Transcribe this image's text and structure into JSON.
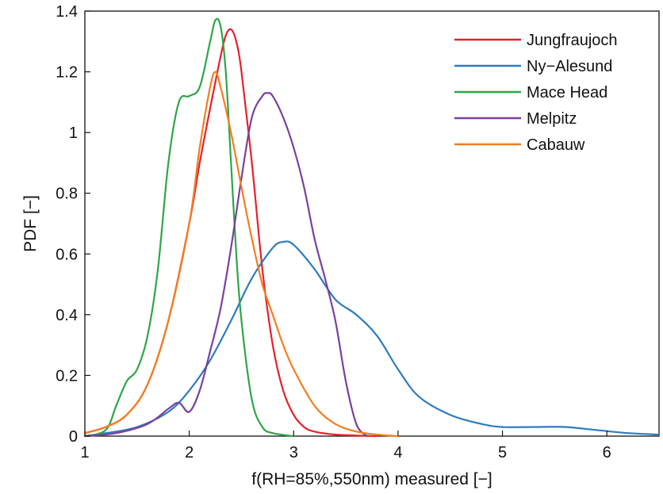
{
  "chart_data": {
    "type": "line",
    "title": "",
    "xlabel": "f(RH=85%,550nm) measured [−]",
    "ylabel": "PDF [−]",
    "xlim": [
      1,
      6.5
    ],
    "ylim": [
      0,
      1.4
    ],
    "xticks": [
      1,
      2,
      3,
      4,
      5,
      6
    ],
    "yticks": [
      0,
      0.2,
      0.4,
      0.6,
      0.8,
      1,
      1.2,
      1.4
    ],
    "xtick_labels": [
      "1",
      "2",
      "3",
      "4",
      "5",
      "6"
    ],
    "ytick_labels": [
      "0",
      "0.2",
      "0.4",
      "0.6",
      "0.8",
      "1",
      "1.2",
      "1.4"
    ],
    "grid": false,
    "legend_position": "top-right",
    "series": [
      {
        "name": "Jungfraujoch",
        "color": "#e8202a",
        "x": [
          1.0,
          1.2,
          1.4,
          1.6,
          1.8,
          2.0,
          2.1,
          2.2,
          2.3,
          2.35,
          2.4,
          2.45,
          2.5,
          2.6,
          2.7,
          2.8,
          2.9,
          3.0,
          3.1,
          3.2,
          3.4,
          3.6,
          3.8
        ],
        "y": [
          0.01,
          0.03,
          0.07,
          0.17,
          0.38,
          0.7,
          0.9,
          1.08,
          1.25,
          1.32,
          1.34,
          1.3,
          1.2,
          0.9,
          0.55,
          0.3,
          0.15,
          0.07,
          0.03,
          0.015,
          0.005,
          0.002,
          0.0
        ]
      },
      {
        "name": "Ny−Alesund",
        "color": "#2e7bbf",
        "x": [
          1.0,
          1.2,
          1.5,
          1.8,
          2.0,
          2.2,
          2.4,
          2.6,
          2.8,
          2.9,
          3.0,
          3.2,
          3.4,
          3.6,
          3.8,
          4.0,
          4.2,
          4.5,
          4.8,
          5.0,
          5.3,
          5.6,
          5.9,
          6.2,
          6.5
        ],
        "y": [
          0.0,
          0.01,
          0.03,
          0.08,
          0.15,
          0.25,
          0.38,
          0.52,
          0.62,
          0.64,
          0.63,
          0.55,
          0.45,
          0.4,
          0.33,
          0.22,
          0.13,
          0.07,
          0.04,
          0.03,
          0.03,
          0.03,
          0.02,
          0.01,
          0.005
        ]
      },
      {
        "name": "Mace Head",
        "color": "#2ea646",
        "x": [
          1.0,
          1.2,
          1.3,
          1.4,
          1.5,
          1.6,
          1.7,
          1.8,
          1.9,
          2.0,
          2.1,
          2.2,
          2.25,
          2.3,
          2.35,
          2.4,
          2.45,
          2.5,
          2.6,
          2.7,
          2.8,
          3.0
        ],
        "y": [
          0.0,
          0.02,
          0.1,
          0.18,
          0.22,
          0.33,
          0.55,
          0.9,
          1.1,
          1.12,
          1.15,
          1.3,
          1.37,
          1.35,
          1.2,
          0.9,
          0.6,
          0.38,
          0.12,
          0.03,
          0.01,
          0.0
        ]
      },
      {
        "name": "Melpitz",
        "color": "#7b3f9e",
        "x": [
          1.0,
          1.3,
          1.6,
          1.8,
          1.9,
          2.0,
          2.1,
          2.2,
          2.3,
          2.4,
          2.5,
          2.6,
          2.7,
          2.75,
          2.8,
          2.9,
          3.0,
          3.1,
          3.2,
          3.3,
          3.4,
          3.5,
          3.6,
          3.7
        ],
        "y": [
          0.0,
          0.01,
          0.04,
          0.09,
          0.11,
          0.08,
          0.15,
          0.28,
          0.42,
          0.62,
          0.85,
          1.05,
          1.12,
          1.13,
          1.12,
          1.05,
          0.95,
          0.82,
          0.65,
          0.52,
          0.38,
          0.18,
          0.04,
          0.0
        ]
      },
      {
        "name": "Cabauw",
        "color": "#f57d1f",
        "x": [
          1.0,
          1.2,
          1.4,
          1.6,
          1.8,
          2.0,
          2.1,
          2.2,
          2.25,
          2.3,
          2.4,
          2.5,
          2.6,
          2.7,
          2.8,
          2.9,
          3.0,
          3.2,
          3.4,
          3.6,
          3.8,
          4.0
        ],
        "y": [
          0.01,
          0.03,
          0.07,
          0.17,
          0.38,
          0.7,
          0.95,
          1.15,
          1.2,
          1.15,
          1.0,
          0.82,
          0.65,
          0.5,
          0.4,
          0.3,
          0.22,
          0.1,
          0.04,
          0.015,
          0.005,
          0.0
        ]
      }
    ]
  }
}
